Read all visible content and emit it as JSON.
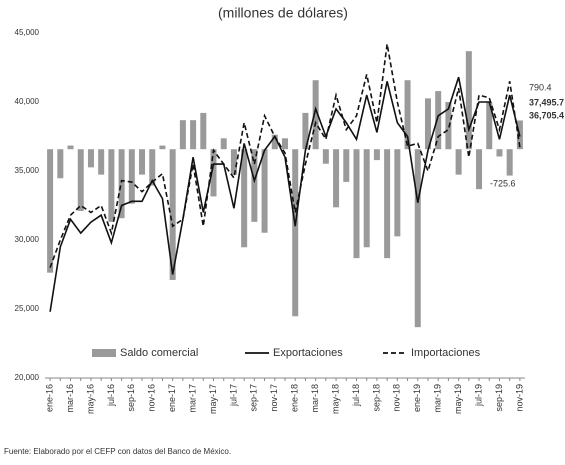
{
  "chart_data": {
    "type": "combo",
    "title": "(millones de dólares)",
    "categories": [
      "ene-16",
      null,
      "mar-16",
      null,
      "may-16",
      null,
      "jul-16",
      null,
      "sep-16",
      null,
      "nov-16",
      null,
      "ene-17",
      null,
      "mar-17",
      null,
      "may-17",
      null,
      "jul-17",
      null,
      "sep-17",
      null,
      "nov-17",
      null,
      "ene-18",
      null,
      "mar-18",
      null,
      "may-18",
      null,
      "jul-18",
      null,
      "sep-18",
      null,
      "nov-18",
      null,
      "ene-19",
      null,
      "mar-19",
      null,
      "may-19",
      null,
      "jul-19",
      null,
      "sep-19",
      null,
      "nov-19"
    ],
    "series": [
      {
        "name": "Saldo comercial",
        "type": "bar",
        "axis": "y2",
        "color": "#9a9a9a",
        "values": [
          -3400,
          -800,
          100,
          -1700,
          -500,
          -700,
          -2000,
          -1900,
          -1500,
          -700,
          -1000,
          100,
          -3600,
          800,
          800,
          1000,
          -1300,
          300,
          -700,
          -2700,
          -2000,
          -2300,
          400,
          300,
          -4600,
          1000,
          1900,
          -400,
          -1600,
          -900,
          -3000,
          -2700,
          -300,
          -3000,
          -2400,
          1900,
          -4900,
          1400,
          1600,
          1300,
          -700,
          2700,
          -1100,
          1300,
          -200,
          -725.6,
          790.4
        ]
      },
      {
        "name": "Exportaciones",
        "type": "line",
        "style": "solid",
        "color": "#111111",
        "values": [
          24800,
          29500,
          31500,
          30500,
          31300,
          31800,
          29800,
          32500,
          32800,
          32800,
          34300,
          33000,
          27500,
          31500,
          36000,
          32000,
          35500,
          35500,
          32300,
          37000,
          34300,
          36500,
          37500,
          36000,
          31000,
          36500,
          39500,
          37500,
          39500,
          38500,
          37300,
          40500,
          37800,
          41500,
          38500,
          37500,
          32700,
          36500,
          39000,
          39500,
          41800,
          38000,
          40000,
          40000,
          37300,
          40500,
          37495.7
        ]
      },
      {
        "name": "Importaciones",
        "type": "line",
        "style": "dashed",
        "color": "#111111",
        "values": [
          28000,
          30000,
          31800,
          32500,
          32000,
          32500,
          30500,
          34300,
          34200,
          33500,
          34200,
          34800,
          31000,
          31500,
          35500,
          31000,
          36500,
          35500,
          34500,
          38500,
          35500,
          39000,
          37500,
          36300,
          32000,
          35500,
          38500,
          37300,
          40500,
          38000,
          39000,
          42000,
          38500,
          44200,
          40000,
          36800,
          37000,
          35000,
          37500,
          38000,
          41000,
          36000,
          40500,
          40300,
          38000,
          41500,
          36705.4
        ]
      }
    ],
    "ylim": [
      20000,
      45000
    ],
    "yticks": [
      {
        "value": 20000,
        "label": "20,000"
      },
      {
        "value": 25000,
        "label": "25,000"
      },
      {
        "value": 30000,
        "label": "30,000"
      },
      {
        "value": 35000,
        "label": "35,000"
      },
      {
        "value": 40000,
        "label": "40,000"
      },
      {
        "value": 45000,
        "label": "45,000"
      }
    ],
    "y2lim": [
      -6300,
      3200
    ],
    "grid": false,
    "legend": "bottom",
    "annotations": [
      "790.4",
      "37,495.7",
      "36,705.4",
      "-725.6"
    ],
    "source": "Fuente: Elaborado por el CEFP con datos del Banco de México."
  }
}
